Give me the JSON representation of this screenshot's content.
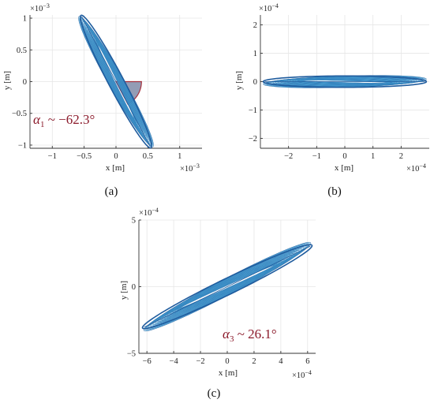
{
  "chart_data": [
    {
      "type": "line",
      "panel_label": "(a)",
      "xlabel": "x [m]",
      "ylabel": "y [m]",
      "x_exponent": "×10",
      "x_exponent_power": "−3",
      "y_exponent": "×10",
      "y_exponent_power": "−3",
      "xlim": [
        -1.35,
        1.35
      ],
      "ylim": [
        -1.05,
        1.05
      ],
      "x_ticks": [
        -1,
        -0.5,
        0,
        0.5,
        1
      ],
      "x_tick_labels": [
        "−1",
        "−0.5",
        "0",
        "0.5",
        "1"
      ],
      "y_ticks": [
        -1,
        -0.5,
        0,
        0.5,
        1
      ],
      "y_tick_labels": [
        "−1",
        "−0.5",
        "0",
        "0.5",
        "1"
      ],
      "grid": true,
      "ellipse": {
        "semi_major": 1.18,
        "semi_minor": 0.12,
        "angle_deg": -62.3
      },
      "annotation": {
        "symbol": "α",
        "subscript": "1",
        "text": " ~ −62.3°"
      },
      "angle_wedge": {
        "from_deg": -62.3,
        "to_deg": 0,
        "radius": 0.4
      }
    },
    {
      "type": "line",
      "panel_label": "(b)",
      "xlabel": "x [m]",
      "ylabel": "y [m]",
      "x_exponent": "×10",
      "x_exponent_power": "−4",
      "y_exponent": "×10",
      "y_exponent_power": "−4",
      "xlim": [
        -3,
        3
      ],
      "ylim": [
        -2.35,
        2.35
      ],
      "x_ticks": [
        -2,
        -1,
        0,
        1,
        2
      ],
      "x_tick_labels": [
        "−2",
        "−1",
        "0",
        "1",
        "2"
      ],
      "y_ticks": [
        -2,
        -1,
        0,
        1,
        2
      ],
      "y_tick_labels": [
        "−2",
        "−1",
        "0",
        "1",
        "2"
      ],
      "grid": true,
      "ellipse": {
        "semi_major": 2.9,
        "semi_minor": 0.2,
        "angle_deg": 0
      }
    },
    {
      "type": "line",
      "panel_label": "(c)",
      "xlabel": "x [m]",
      "ylabel": "y [m]",
      "x_exponent": "×10",
      "x_exponent_power": "−4",
      "y_exponent": "×10",
      "y_exponent_power": "−4",
      "xlim": [
        -6.6,
        6.6
      ],
      "ylim": [
        -5,
        5
      ],
      "x_ticks": [
        -6,
        -4,
        -2,
        0,
        2,
        4,
        6
      ],
      "x_tick_labels": [
        "−6",
        "−4",
        "−2",
        "0",
        "2",
        "4",
        "6"
      ],
      "y_ticks": [
        -5,
        0,
        5
      ],
      "y_tick_labels": [
        "−5",
        "0",
        "5"
      ],
      "grid": true,
      "ellipse": {
        "semi_major": 7.05,
        "semi_minor": 0.6,
        "angle_deg": 26.1
      },
      "annotation": {
        "symbol": "α",
        "subscript": "3",
        "text": " ~ 26.1°"
      }
    }
  ],
  "colors": {
    "trace_dark": "#1f5c9e",
    "trace_mid": "#2f86c8",
    "trace_light": "#63c3e8",
    "wedge_fill": "#6f7b9c",
    "wedge_edge": "#a8323e",
    "annotation": "#8b1a2b"
  }
}
